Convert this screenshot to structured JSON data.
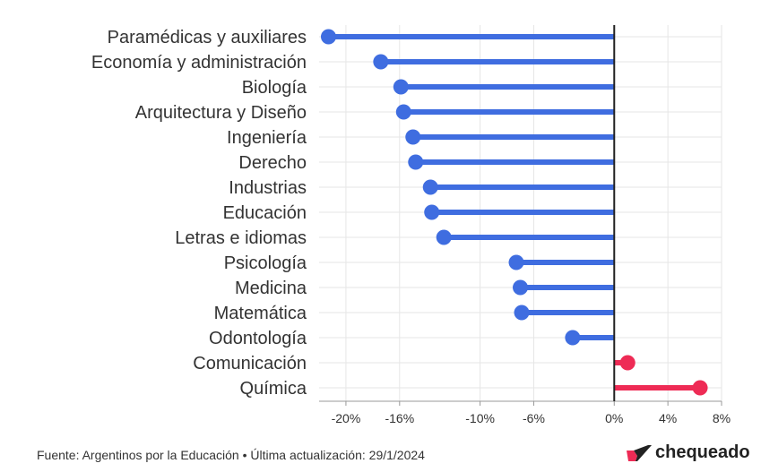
{
  "chart_data": {
    "type": "lollipop",
    "orientation": "horizontal",
    "categories": [
      "Paramédicas y auxiliares",
      "Economía y administración",
      "Biología",
      "Arquitectura y Diseño",
      "Ingeniería",
      "Derecho",
      "Industrias",
      "Educación",
      "Letras e idiomas",
      "Psicología",
      "Medicina",
      "Matemática",
      "Odontología",
      "Comunicación",
      "Química"
    ],
    "values": [
      -21.3,
      -17.4,
      -15.9,
      -15.7,
      -15.0,
      -14.8,
      -13.7,
      -13.6,
      -12.7,
      -7.3,
      -7.0,
      -6.9,
      -3.1,
      1.0,
      6.4
    ],
    "xlim": [
      -22,
      8
    ],
    "x_ticks": [
      -20,
      -16,
      -10,
      -6,
      0,
      4,
      8
    ],
    "x_tick_labels": [
      "-20%",
      "-16%",
      "-10%",
      "-6%",
      "0%",
      "4%",
      "8%"
    ],
    "colors": {
      "negative": "#3f6de0",
      "positive": "#ee2b55",
      "zero_line": "#222222",
      "grid": "#e6e6e6"
    },
    "grid": true
  },
  "footer": {
    "source": "Fuente: Argentinos por la Educación • Última actualización: 29/1/2024"
  },
  "brand": {
    "name": "chequeado",
    "icon": "chequeado-logo-icon"
  }
}
